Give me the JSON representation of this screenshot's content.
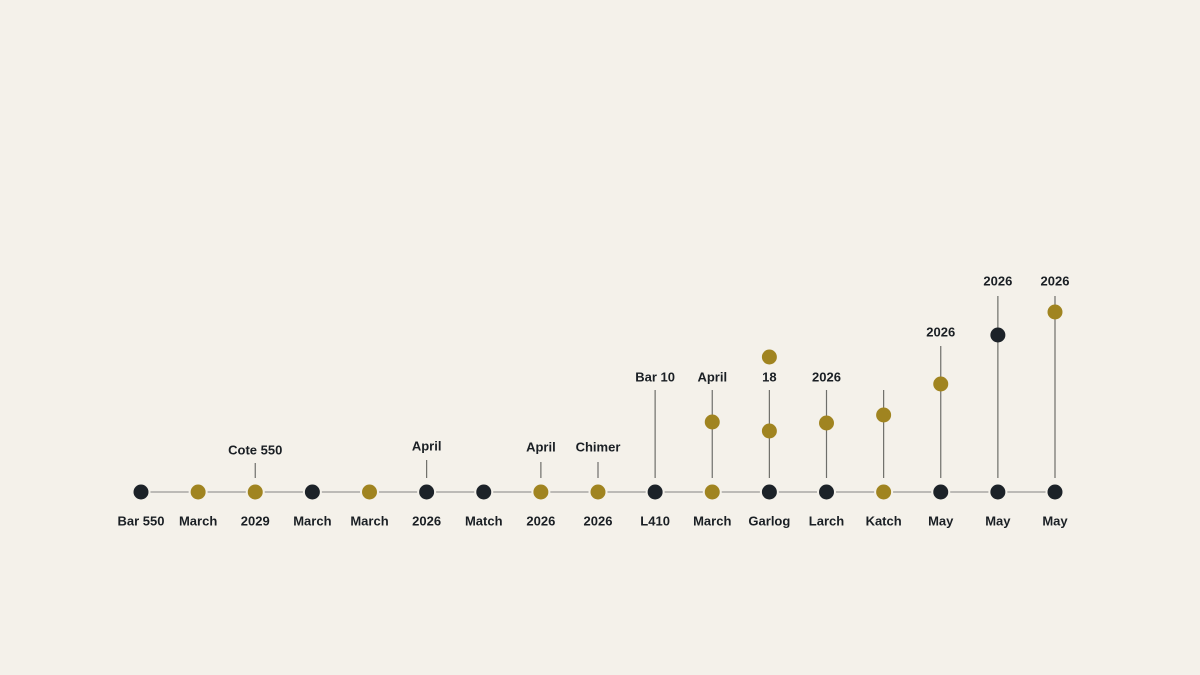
{
  "nodes": [
    {
      "label": "Bar 550"
    },
    {
      "label": "March"
    },
    {
      "label": "2029",
      "top_label": "Cote 550"
    },
    {
      "label": "March"
    },
    {
      "label": "March"
    },
    {
      "label": "2026",
      "top_label": "April"
    },
    {
      "label": "Match"
    },
    {
      "label": "2026",
      "top_label": "April"
    },
    {
      "label": "2026",
      "top_label": "Chimer"
    },
    {
      "label": "L410",
      "top_label": "Bar 10"
    },
    {
      "label": "March",
      "top_label": "April"
    },
    {
      "label": "Garlog",
      "top_label": "18"
    },
    {
      "label": "Larch",
      "top_label": "2026"
    },
    {
      "label": "Katch"
    },
    {
      "label": "May",
      "top_label": "2026"
    },
    {
      "label": "May",
      "top_label": "2026"
    },
    {
      "label": "May",
      "top_label": "2026"
    }
  ]
}
